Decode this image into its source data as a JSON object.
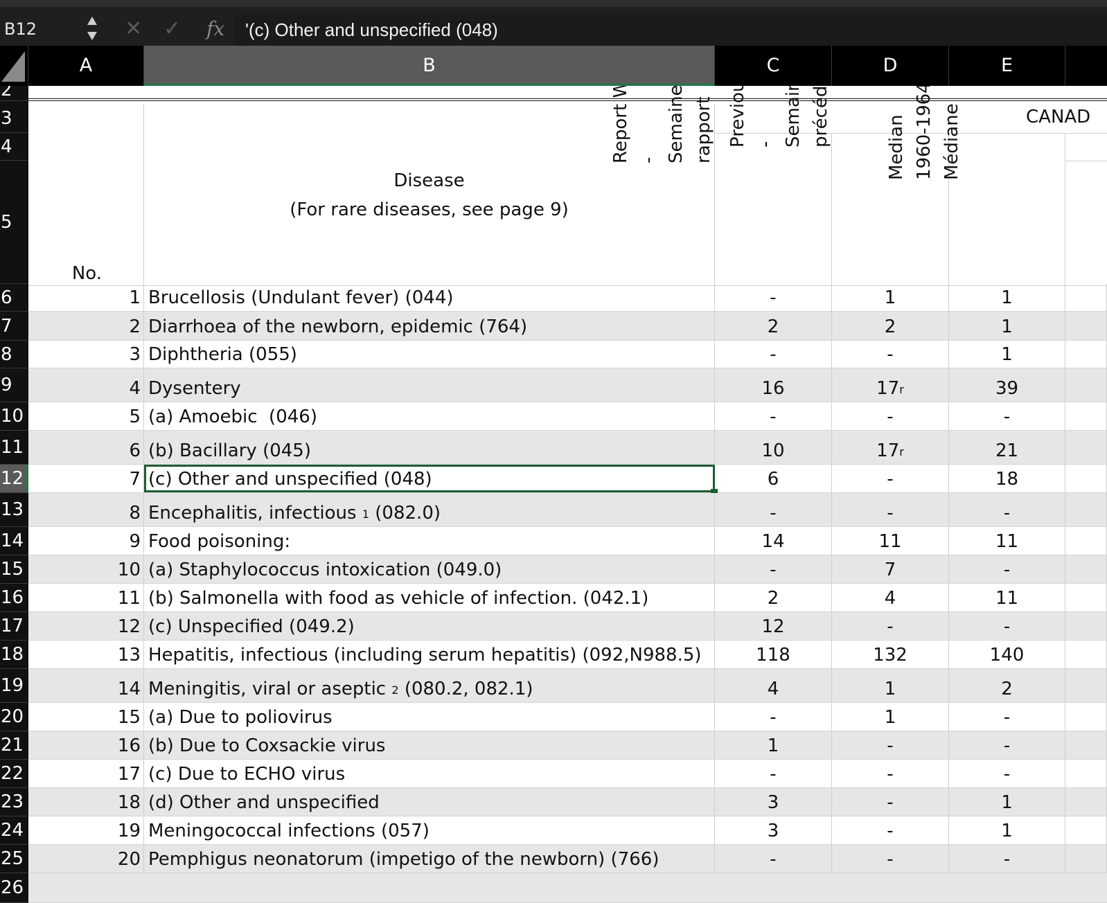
{
  "formula_bar": {
    "cell_ref": "B12",
    "cancel_icon": "✕",
    "confirm_icon": "✓",
    "fx_label": "fx",
    "formula": "'(c) Other and unspecified (048)"
  },
  "columns": [
    "A",
    "B",
    "C",
    "D",
    "E"
  ],
  "row_numbers": [
    "2",
    "3",
    "4",
    "5",
    "6",
    "7",
    "8",
    "9",
    "10",
    "11",
    "12",
    "13",
    "14",
    "15",
    "16",
    "17",
    "18",
    "19",
    "20",
    "21",
    "22",
    "23",
    "24",
    "25",
    "26"
  ],
  "header": {
    "no_label": "No.",
    "disease_line1": "Disease",
    "disease_line2": "(For rare diseases, see page 9)",
    "region": "CANAD",
    "col_c": "Report Week\n-\nSemaine du\nrapport",
    "col_d": "Previous Week\n-\nSemaine\nprécédente",
    "col_e": "Median\n1960-1964\nMédiane"
  },
  "rows": [
    {
      "no": "1",
      "disease": "Brucellosis (Undulant fever) (044)",
      "c": "-",
      "d": "1",
      "e": "1"
    },
    {
      "no": "2",
      "disease": "Diarrhoea of the newborn, epidemic (764)",
      "c": "2",
      "d": "2",
      "e": "1"
    },
    {
      "no": "3",
      "disease": "Diphtheria (055)",
      "c": "-",
      "d": "-",
      "e": "1"
    },
    {
      "no": "4",
      "disease": "Dysentery",
      "c": "16",
      "d": "17",
      "d_sup": "r",
      "e": "39"
    },
    {
      "no": "5",
      "disease": "(a) Amoebic  (046)",
      "c": "-",
      "d": "-",
      "e": "-"
    },
    {
      "no": "6",
      "disease": "(b) Bacillary (045)",
      "c": "10",
      "d": "17",
      "d_sup": "r",
      "e": "21"
    },
    {
      "no": "7",
      "disease": "(c) Other and unspecified (048)",
      "c": "6",
      "d": "-",
      "e": "18"
    },
    {
      "no": "8",
      "disease": "Encephalitis, infectious ",
      "disease_sup": "1",
      "disease_tail": " (082.0)",
      "c": "-",
      "d": "-",
      "e": "-"
    },
    {
      "no": "9",
      "disease": "Food poisoning:",
      "c": "14",
      "d": "11",
      "e": "11"
    },
    {
      "no": "10",
      "disease": "(a) Staphylococcus intoxication (049.0)",
      "c": "-",
      "d": "7",
      "e": "-"
    },
    {
      "no": "11",
      "disease": "(b) Salmonella with food as vehicle of infection. (042.1)",
      "c": "2",
      "d": "4",
      "e": "11"
    },
    {
      "no": "12",
      "disease": "(c) Unspecified (049.2)",
      "c": "12",
      "d": "-",
      "e": "-"
    },
    {
      "no": "13",
      "disease": "Hepatitis, infectious (including serum hepatitis) (092,N988.5)",
      "c": "118",
      "d": "132",
      "e": "140"
    },
    {
      "no": "14",
      "disease": "Meningitis, viral or aseptic ",
      "disease_sup": "2",
      "disease_tail": " (080.2, 082.1)",
      "c": "4",
      "d": "1",
      "e": "2"
    },
    {
      "no": "15",
      "disease": "(a) Due to poliovirus",
      "c": "-",
      "d": "1",
      "e": "-"
    },
    {
      "no": "16",
      "disease": "(b) Due to Coxsackie virus",
      "c": "1",
      "d": "-",
      "e": "-"
    },
    {
      "no": "17",
      "disease": "(c) Due to ECHO virus",
      "c": "-",
      "d": "-",
      "e": "-"
    },
    {
      "no": "18",
      "disease": "(d) Other and unspecified",
      "c": "3",
      "d": "-",
      "e": "1"
    },
    {
      "no": "19",
      "disease": "Meningococcal infections (057)",
      "c": "3",
      "d": "-",
      "e": "1"
    },
    {
      "no": "20",
      "disease": "Pemphigus neonatorum (impetigo of the newborn) (766)",
      "c": "-",
      "d": "-",
      "e": "-"
    }
  ],
  "colors": {
    "selection": "#1f5c33",
    "header_bg": "#000000",
    "band": "#e6e6e6"
  }
}
